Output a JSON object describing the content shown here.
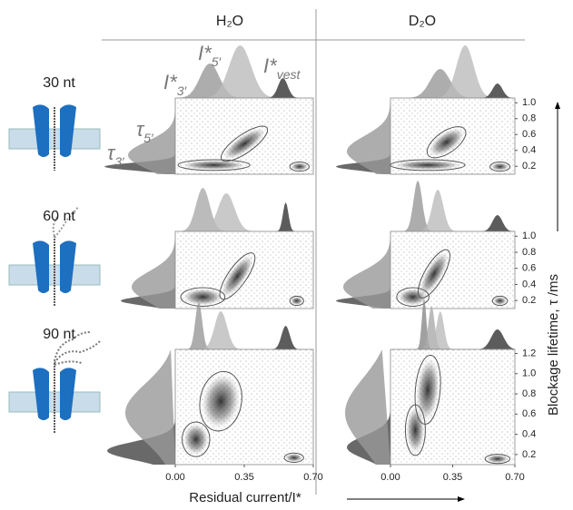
{
  "chart_data": {
    "type": "scatter",
    "columns": [
      "H₂O",
      "D₂O"
    ],
    "rows": [
      {
        "label": "30 nt",
        "ylim": [
          0.1,
          1.06
        ],
        "yticks": [
          0.2,
          0.4,
          0.6,
          0.8,
          {
            "value": 1,
            "label": "1.0"
          }
        ]
      },
      {
        "label": "60 nt",
        "ylim": [
          0.1,
          1.06
        ],
        "yticks": [
          0.2,
          0.4,
          0.6,
          0.8,
          {
            "value": 1,
            "label": "1.0"
          }
        ]
      },
      {
        "label": "90 nt",
        "ylim": [
          0.1,
          1.24
        ],
        "yticks": [
          0.2,
          0.4,
          0.6,
          0.8,
          {
            "value": 1,
            "label": "1.0"
          },
          1.2
        ]
      }
    ],
    "xlim": [
      0,
      0.7
    ],
    "xticks": [
      {
        "value": 0,
        "label": "0.00"
      },
      0.35,
      {
        "value": 0.7,
        "label": "0.70"
      }
    ],
    "x_label": "Residual current/I*",
    "y_label": "Blockage lifetime, τ /ms",
    "annotations": [
      {
        "main": "I*",
        "sub": "3′"
      },
      {
        "main": "I*",
        "sub": "5′"
      },
      {
        "main": "I*",
        "sub": "vest"
      },
      {
        "main": "τ",
        "sub": "5′"
      },
      {
        "main": "τ",
        "sub": "3′"
      }
    ]
  }
}
